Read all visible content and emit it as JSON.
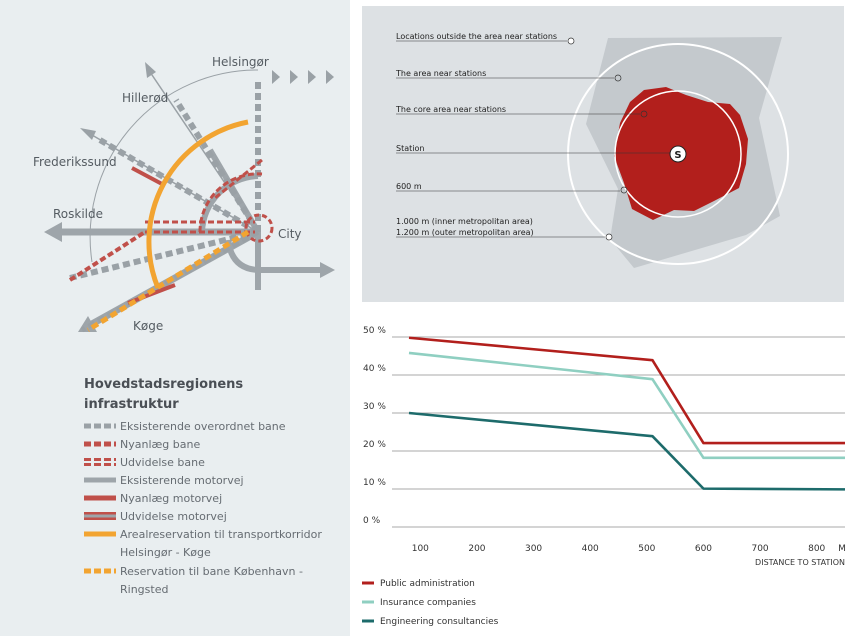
{
  "map": {
    "places": {
      "helsingor": "Helsingør",
      "hillerod": "Hillerød",
      "frederikssund": "Frederikssund",
      "roskilde": "Roskilde",
      "koge": "Køge",
      "city": "City"
    },
    "legend": {
      "title_line1": "Hovedstadsregionens",
      "title_line2": "infrastruktur",
      "items": [
        "Eksisterende overordnet bane",
        "Nyanlæg bane",
        "Udvidelse bane",
        "Eksisterende motorvej",
        "Nyanlæg motorvej",
        "Udvidelse motorvej",
        "Arealreservation til transportkorridor",
        "Helsingør - Køge",
        "Reservation til bane København -",
        "Ringsted"
      ]
    },
    "colors": {
      "rail_grey": "#9aa1a6",
      "rail_red": "#c0504a",
      "motorway_grey": "#9ea5aa",
      "corridor_orange": "#f2a431",
      "reservation_orange": "#f2a431"
    }
  },
  "station_diagram": {
    "annotations": [
      "Locations outside the area near stations",
      "The area near stations",
      "The core area near stations",
      "Station",
      "600 m",
      "1.000 m (inner metropolitan area)",
      "1.200 m (outer metropolitan area)"
    ],
    "station_symbol": "S",
    "colors": {
      "core": "#b21f1c",
      "area": "#c4c9cd",
      "background": "#dde1e4"
    }
  },
  "chart_data": {
    "type": "line",
    "y_ticks": [
      "50 %",
      "40 %",
      "30 %",
      "20 %",
      "10 %",
      "0 %"
    ],
    "x_ticks": [
      "100",
      "200",
      "300",
      "400",
      "500",
      "600",
      "700",
      "800",
      "M"
    ],
    "xlabel": "DISTANCE TO STATION",
    "ylim": [
      0,
      50
    ],
    "xlim": [
      50,
      850
    ],
    "series": [
      {
        "name": "Public administration",
        "color": "#b21f1c",
        "x": [
          80,
          510,
          600,
          850
        ],
        "y": [
          49.8,
          43.9,
          22.1,
          22.1
        ]
      },
      {
        "name": "Insurance companies",
        "color": "#8fcfc1",
        "x": [
          80,
          510,
          600,
          850
        ],
        "y": [
          45.8,
          38.9,
          18.2,
          18.2
        ]
      },
      {
        "name": "Engineering consultancies",
        "color": "#1d6b6b",
        "x": [
          80,
          510,
          600,
          850
        ],
        "y": [
          30.0,
          23.9,
          10.1,
          9.9
        ]
      }
    ]
  }
}
